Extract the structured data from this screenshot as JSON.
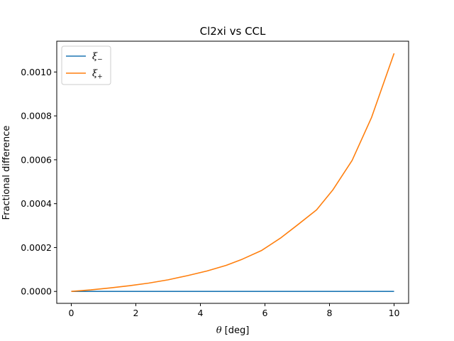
{
  "chart_data": {
    "type": "line",
    "title": "Cl2xi vs CCL",
    "xlabel_symbol": "θ",
    "xlabel_unit": " [deg]",
    "ylabel": "Fractional difference",
    "xlim": [
      -0.45,
      10.45
    ],
    "ylim": [
      -5.43e-05,
      0.0011403
    ],
    "x_ticks": [
      0,
      2,
      4,
      6,
      8,
      10
    ],
    "x_tick_labels": [
      "0",
      "2",
      "4",
      "6",
      "8",
      "10"
    ],
    "y_ticks": [
      0,
      0.0002,
      0.0004,
      0.0006,
      0.0008,
      0.001
    ],
    "y_tick_labels": [
      "0.0000",
      "0.0002",
      "0.0004",
      "0.0006",
      "0.0008",
      "0.0010"
    ],
    "grid": false,
    "legend_position": "top-left",
    "series": [
      {
        "name": "ξ−",
        "legend_base": "ξ",
        "legend_sub": "−",
        "color": "#1f77b4",
        "x": [
          0,
          10
        ],
        "y": [
          0,
          0
        ]
      },
      {
        "name": "ξ+",
        "legend_base": "ξ",
        "legend_sub": "+",
        "color": "#ff7f0e",
        "x": [
          0,
          0.6,
          1.2,
          1.8,
          2.4,
          3.0,
          3.6,
          4.2,
          4.8,
          5.3,
          5.9,
          6.5,
          7.0,
          7.6,
          8.1,
          8.7,
          9.3,
          10.0
        ],
        "y": [
          0,
          7e-06,
          1.6e-05,
          2.6e-05,
          3.8e-05,
          5.3e-05,
          7.2e-05,
          9.3e-05,
          0.000119,
          0.000147,
          0.000187,
          0.000245,
          0.000302,
          0.000372,
          0.000462,
          0.000597,
          0.000792,
          0.001085
        ]
      }
    ]
  }
}
